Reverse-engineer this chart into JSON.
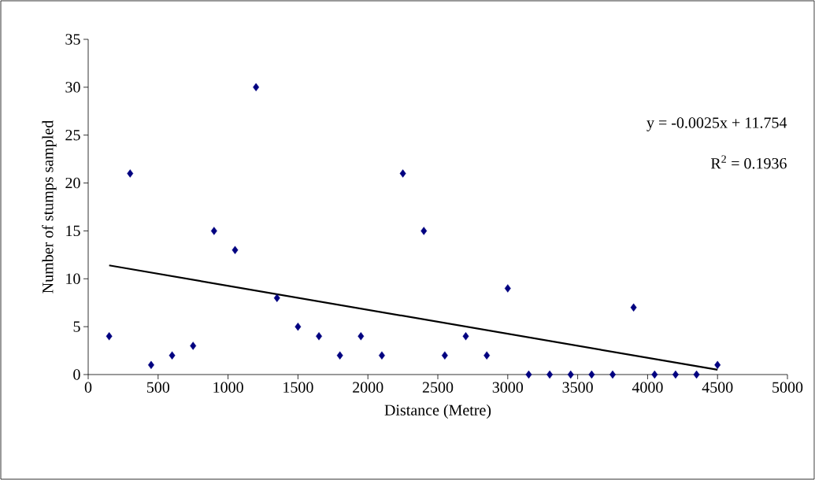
{
  "chart_data": {
    "type": "scatter",
    "xlabel": "Distance (Metre)",
    "ylabel": "Number of stumps sampled",
    "xlim": [
      0,
      5000
    ],
    "xticks": [
      0,
      500,
      1000,
      1500,
      2000,
      2500,
      3000,
      3500,
      4000,
      4500,
      5000
    ],
    "ylim": [
      0,
      35
    ],
    "yticks": [
      0,
      5,
      10,
      15,
      20,
      25,
      30,
      35
    ],
    "marker": "diamond",
    "grid": false,
    "annotations": [
      "y = -0.0025x + 11.754",
      "R$^{2}$ = 0.1936"
    ],
    "series": [
      {
        "color": "#000080",
        "x": [
          150,
          300,
          450,
          600,
          750,
          900,
          1050,
          1200,
          1350,
          1500,
          1650,
          1800,
          1950,
          2100,
          2250,
          2400,
          2550,
          2700,
          2850,
          3000,
          3150,
          3300,
          3450,
          3600,
          3750,
          3900,
          4050,
          4200,
          4350,
          4500
        ],
        "values": [
          4,
          21,
          1,
          2,
          3,
          15,
          13,
          30,
          8,
          5,
          4,
          2,
          4,
          2,
          21,
          15,
          2,
          4,
          2,
          9,
          0,
          0,
          0,
          0,
          0,
          7,
          0,
          0,
          0,
          1
        ]
      },
      {
        "type": "line",
        "color": "#000000",
        "marker": "none",
        "x": [
          150,
          4500
        ],
        "values": [
          11.4,
          0.5
        ]
      }
    ]
  }
}
